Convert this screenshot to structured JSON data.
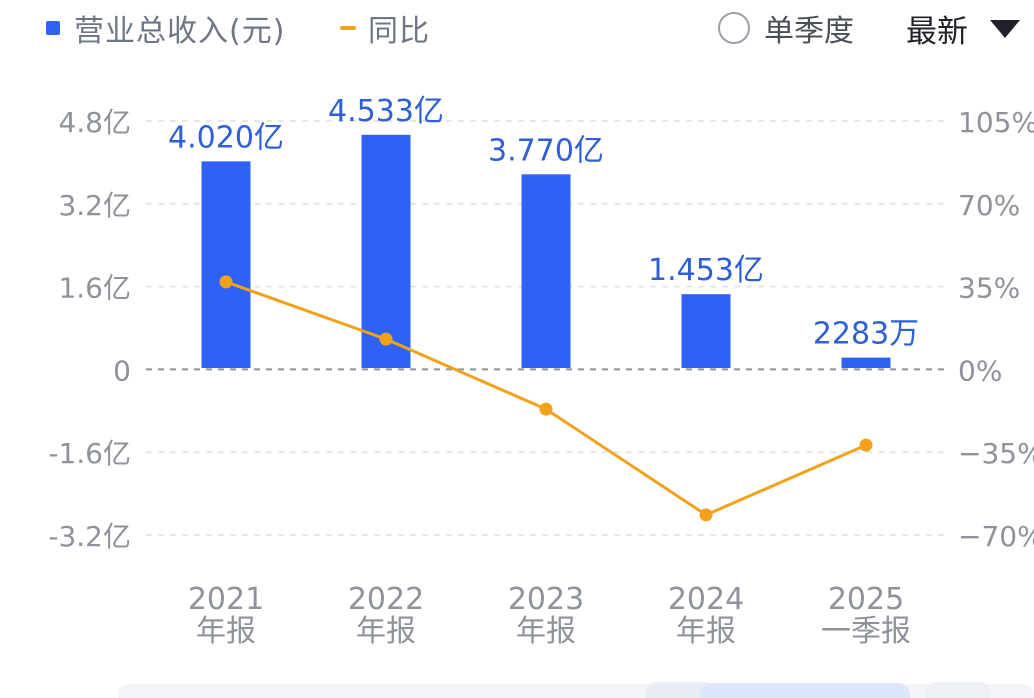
{
  "legend": {
    "revenue_label": "营业总收入(元)",
    "yoy_label": "同比",
    "revenue_color": "#2e62f5",
    "yoy_color": "#f1a21a"
  },
  "controls": {
    "single_quarter_label": "单季度",
    "single_quarter_checked": false,
    "sort_label": "最新",
    "sort_icon": "caret-down-icon"
  },
  "chart_data": {
    "type": "bar",
    "categories": [
      [
        "2021",
        "年报"
      ],
      [
        "2022",
        "年报"
      ],
      [
        "2023",
        "年报"
      ],
      [
        "2024",
        "年报"
      ],
      [
        "2025",
        "一季报"
      ]
    ],
    "series": [
      {
        "name": "营业总收入(元)",
        "type": "bar",
        "axis": "left",
        "color": "#2e62f5",
        "values": [
          4.02,
          4.533,
          3.77,
          1.453,
          0.2283
        ],
        "unit": "亿",
        "labels": [
          "4.020亿",
          "4.533亿",
          "3.770亿",
          "1.453亿",
          "2283万"
        ]
      },
      {
        "name": "同比",
        "type": "line",
        "axis": "right",
        "color": "#f1a21a",
        "values": [
          37,
          12.8,
          -16.8,
          -61.5,
          -32
        ],
        "unit": "%"
      }
    ],
    "y_left": {
      "range": [
        -3.2,
        4.8
      ],
      "ticks": [
        4.8,
        3.2,
        1.6,
        0,
        -1.6,
        -3.2
      ],
      "tick_labels": [
        "4.8亿",
        "3.2亿",
        "1.6亿",
        "0",
        "-1.6亿",
        "-3.2亿"
      ]
    },
    "y_right": {
      "range": [
        -70,
        105
      ],
      "ticks": [
        105,
        70,
        35,
        0,
        -35,
        -70
      ],
      "tick_labels": [
        "105%",
        "70%",
        "35%",
        "0%",
        "−35%",
        "−70%"
      ]
    },
    "grid": true,
    "legend_position": "top-left"
  }
}
